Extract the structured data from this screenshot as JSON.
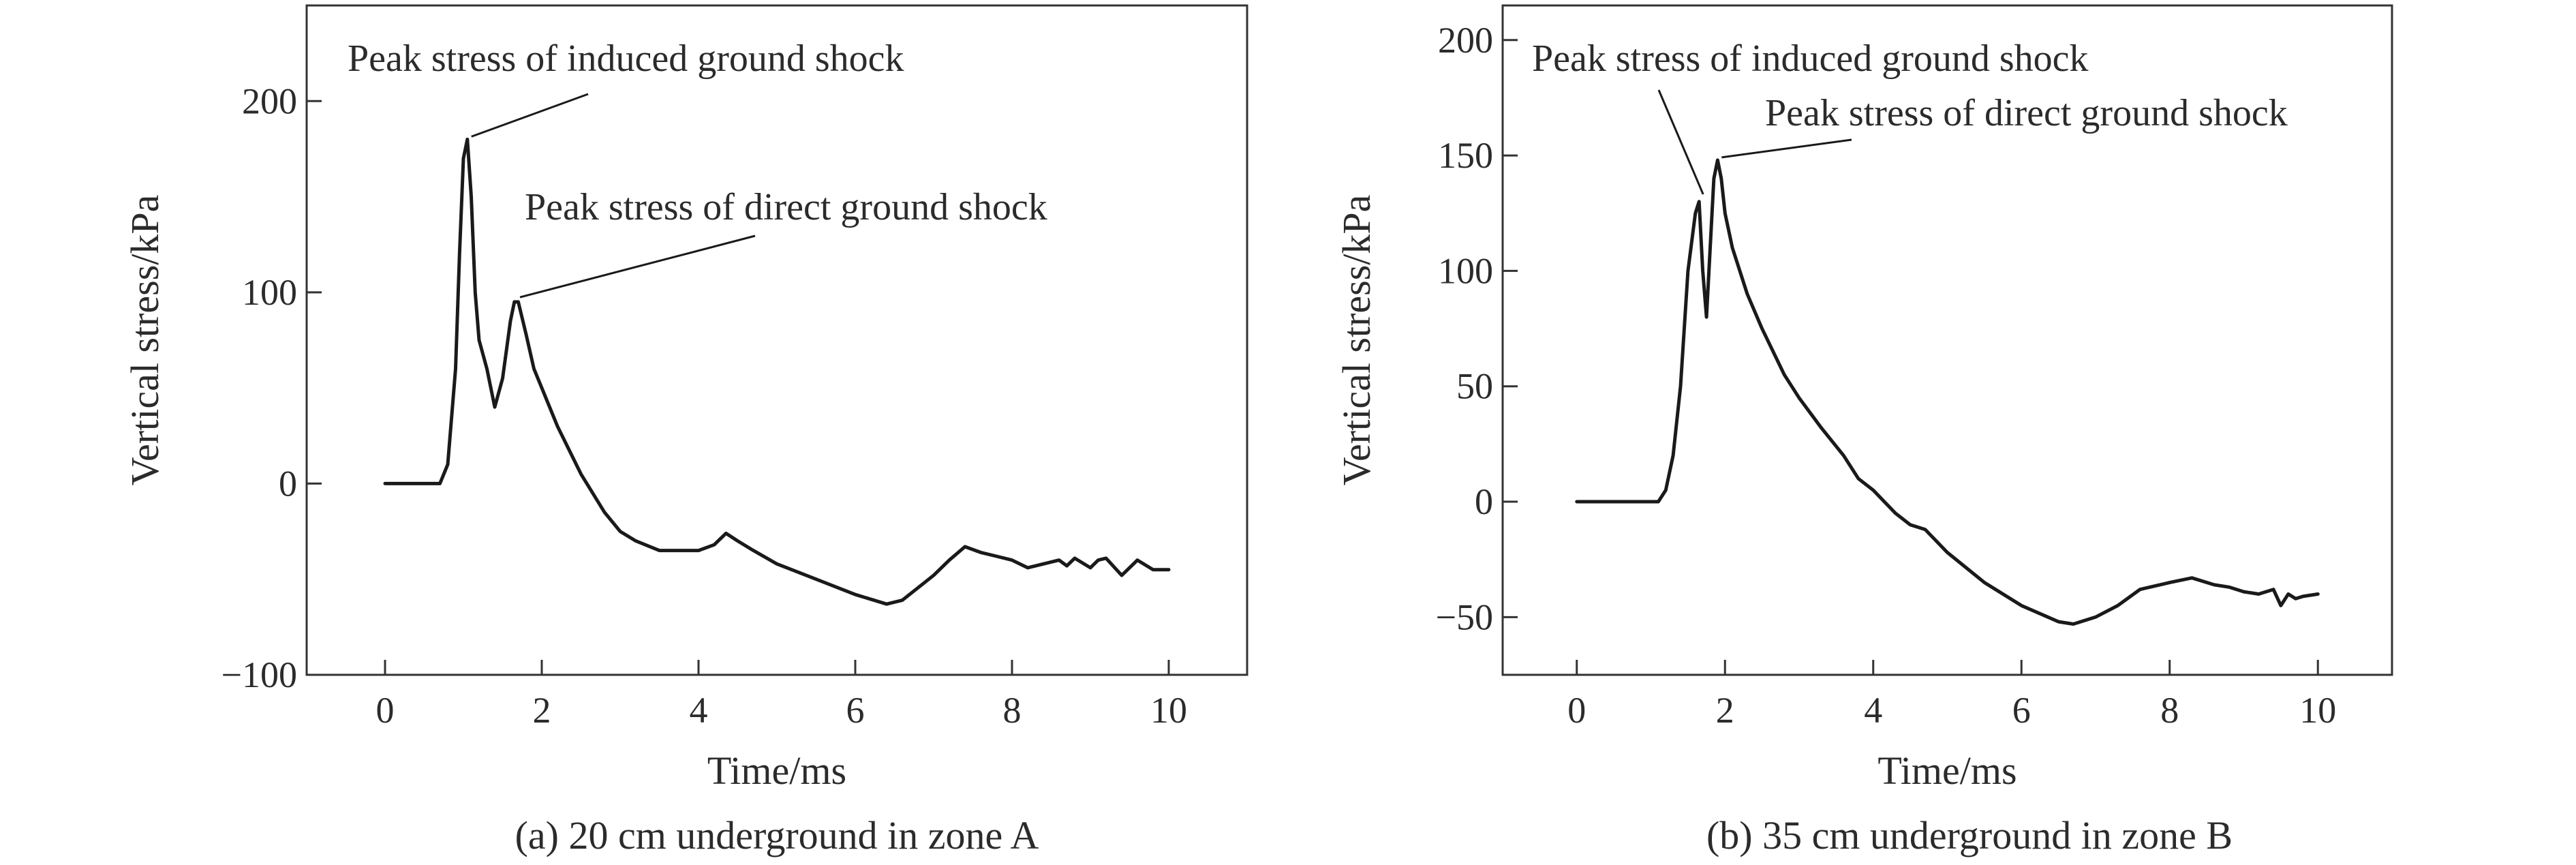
{
  "chart_data": [
    {
      "type": "line",
      "caption": "(a) 20 cm underground in zone A",
      "xlabel": "Time/ms",
      "ylabel": "Vertical stress/kPa",
      "xlim": [
        -1,
        11.0
      ],
      "ylim": [
        -100,
        250
      ],
      "xticks": [
        0,
        2,
        4,
        6,
        8,
        10
      ],
      "yticks": [
        -100,
        0,
        100,
        200
      ],
      "x": [
        0,
        0.7,
        0.8,
        0.9,
        0.95,
        1.0,
        1.05,
        1.1,
        1.15,
        1.2,
        1.3,
        1.4,
        1.5,
        1.6,
        1.65,
        1.7,
        1.8,
        1.9,
        2.0,
        2.2,
        2.5,
        2.8,
        3.0,
        3.2,
        3.5,
        4.0,
        4.2,
        4.35,
        4.5,
        4.7,
        5.0,
        5.5,
        6.0,
        6.4,
        6.6,
        7.0,
        7.2,
        7.4,
        7.6,
        7.8,
        8.0,
        8.2,
        8.4,
        8.6,
        8.7,
        8.8,
        9.0,
        9.1,
        9.2,
        9.4,
        9.6,
        9.8,
        10.0
      ],
      "y": [
        0,
        0,
        10,
        60,
        120,
        170,
        180,
        150,
        100,
        75,
        60,
        40,
        55,
        85,
        95,
        95,
        78,
        60,
        50,
        30,
        5,
        -15,
        -25,
        -30,
        -35,
        -35,
        -32,
        -26,
        -30,
        -35,
        -42,
        -50,
        -58,
        -63,
        -61,
        -48,
        -40,
        -33,
        -36,
        -38,
        -40,
        -44,
        -42,
        -40,
        -43,
        -39,
        -44,
        -40,
        -39,
        -48,
        -40,
        -45,
        -45
      ],
      "annotations": [
        {
          "text": "Peak stress of induced ground shock",
          "x": 1.05,
          "y": 180
        },
        {
          "text": "Peak stress of direct ground shock",
          "x": 1.67,
          "y": 96
        }
      ]
    },
    {
      "type": "line",
      "caption": "(b) 35 cm underground in zone B",
      "xlabel": "Time/ms",
      "ylabel": "Vertical stress/kPa",
      "xlim": [
        -1,
        11.0
      ],
      "ylim": [
        -75,
        215
      ],
      "xticks": [
        0,
        2,
        4,
        6,
        8,
        10
      ],
      "yticks": [
        -50,
        0,
        50,
        100,
        150,
        200
      ],
      "x": [
        0,
        1.1,
        1.2,
        1.3,
        1.4,
        1.5,
        1.6,
        1.65,
        1.7,
        1.75,
        1.8,
        1.85,
        1.9,
        1.95,
        2.0,
        2.1,
        2.3,
        2.5,
        2.8,
        3.0,
        3.3,
        3.6,
        3.8,
        4.0,
        4.3,
        4.5,
        4.7,
        5.0,
        5.5,
        6.0,
        6.5,
        6.7,
        7.0,
        7.3,
        7.6,
        8.0,
        8.3,
        8.6,
        8.8,
        9.0,
        9.2,
        9.4,
        9.5,
        9.6,
        9.7,
        9.8,
        10.0
      ],
      "y": [
        0,
        0,
        5,
        20,
        50,
        100,
        125,
        130,
        100,
        80,
        110,
        140,
        148,
        140,
        125,
        110,
        90,
        75,
        55,
        45,
        32,
        20,
        10,
        5,
        -5,
        -10,
        -12,
        -22,
        -35,
        -45,
        -52,
        -53,
        -50,
        -45,
        -38,
        -35,
        -33,
        -36,
        -37,
        -39,
        -40,
        -38,
        -45,
        -40,
        -42,
        -41,
        -40
      ],
      "annotations": [
        {
          "text": "Peak stress of induced ground shock",
          "x": 1.65,
          "y": 132
        },
        {
          "text": "Peak stress of direct ground shock",
          "x": 1.9,
          "y": 148
        }
      ]
    }
  ]
}
